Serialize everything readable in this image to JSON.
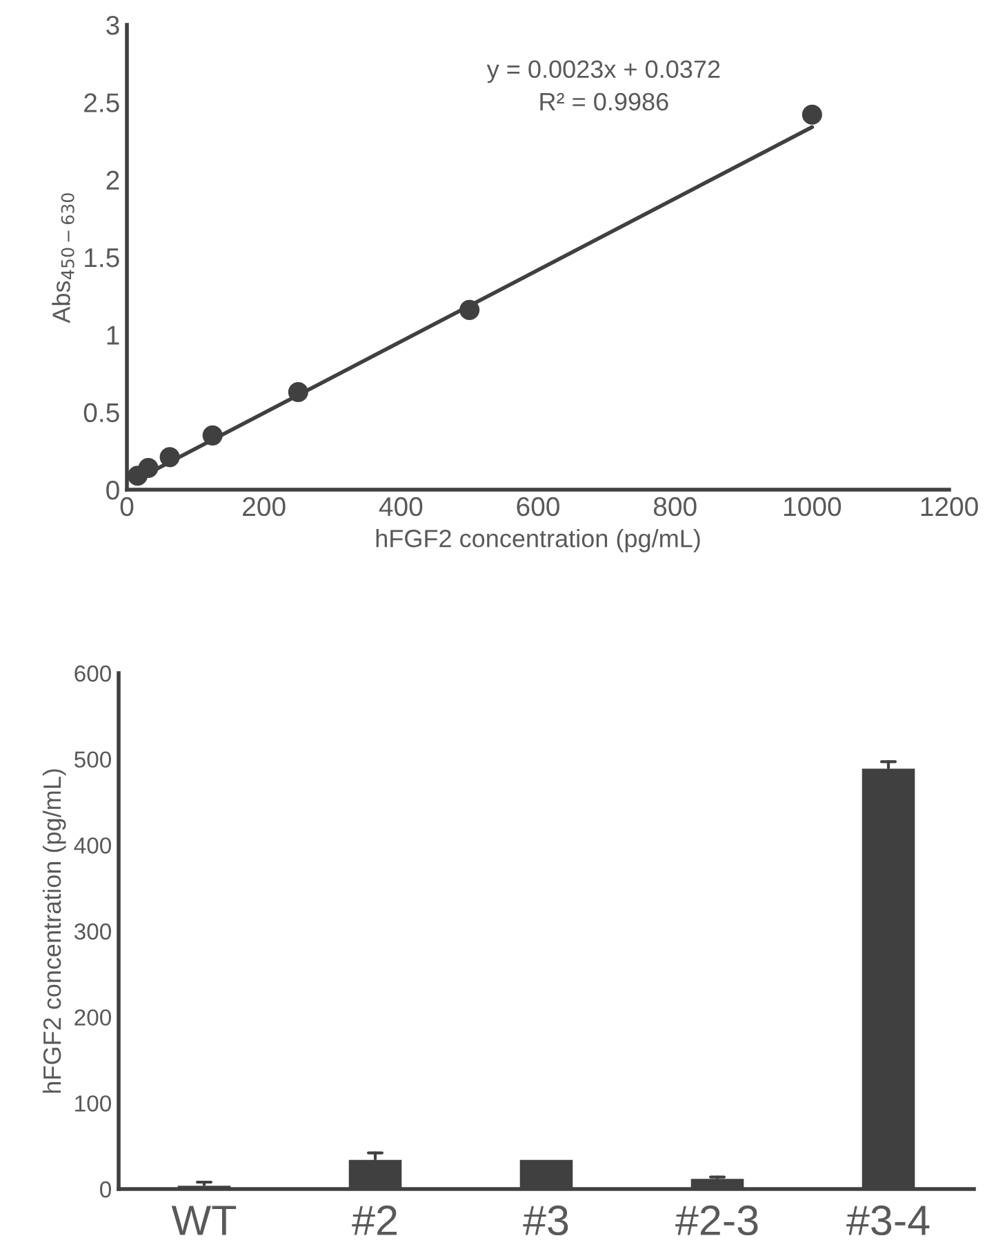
{
  "chart_data": [
    {
      "type": "scatter",
      "xlabel": "hFGF2 concentration (pg/mL)",
      "ylabel": "Abs$_{450−630}$",
      "series": [
        {
          "type": "scatter",
          "marker": "circle",
          "color": "#404040",
          "x": [
            15.6,
            31.25,
            62.5,
            125,
            250,
            500,
            1000
          ],
          "values": [
            0.09,
            0.14,
            0.21,
            0.35,
            0.63,
            1.16,
            2.42
          ]
        },
        {
          "type": "line",
          "marker": "none",
          "color": "#404040",
          "x": [
            15.6,
            1000
          ],
          "values": [
            0.07,
            2.34
          ]
        }
      ],
      "annotations": [
        "y = 0.0023x + 0.0372",
        "R² = 0.9986"
      ],
      "xlim": [
        0,
        1200
      ],
      "xticks": [
        0,
        200,
        400,
        600,
        800,
        1000,
        1200
      ],
      "ylim": [
        0,
        3
      ],
      "yticks": [
        0,
        0.5,
        1,
        1.5,
        2,
        2.5,
        3
      ],
      "grid": false,
      "legend": false
    },
    {
      "type": "bar",
      "ylabel": "hFGF2 concentration (pg/mL)",
      "categories": [
        "WT",
        "#2",
        "#3",
        "#2-3",
        "#3-4"
      ],
      "values": [
        5,
        35,
        35,
        13,
        490
      ],
      "color": "#404040",
      "errors": [
        [
          5,
          8
        ],
        [
          35,
          42
        ],
        null,
        [
          13,
          14
        ],
        [
          490,
          497
        ]
      ],
      "ylim": [
        0,
        600
      ],
      "yticks": [
        0,
        100,
        200,
        300,
        400,
        500,
        600
      ],
      "grid": false,
      "legend": false
    }
  ]
}
